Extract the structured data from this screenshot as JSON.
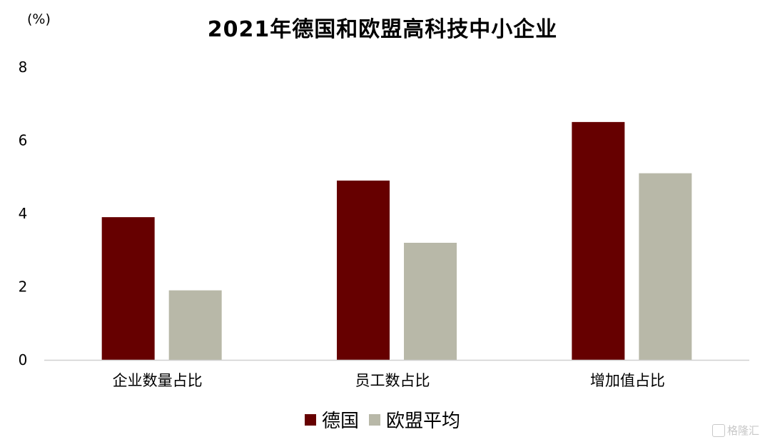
{
  "chart_data": {
    "type": "bar",
    "title": "2021年德国和欧盟高科技中小企业",
    "unit": "(%)",
    "categories": [
      "企业数量占比",
      "员工数占比",
      "增加值占比"
    ],
    "series": [
      {
        "name": "德国",
        "color": "#660000",
        "values": [
          3.9,
          4.9,
          6.5
        ]
      },
      {
        "name": "欧盟平均",
        "color": "#b8b8a8",
        "values": [
          1.9,
          3.2,
          5.1
        ]
      }
    ],
    "ylim": [
      0,
      8
    ],
    "yticks": [
      0,
      2,
      4,
      6,
      8
    ],
    "grid": false,
    "legend_position": "bottom"
  },
  "watermark": {
    "text": "格隆汇",
    "icon": "watermark-logo-icon"
  }
}
